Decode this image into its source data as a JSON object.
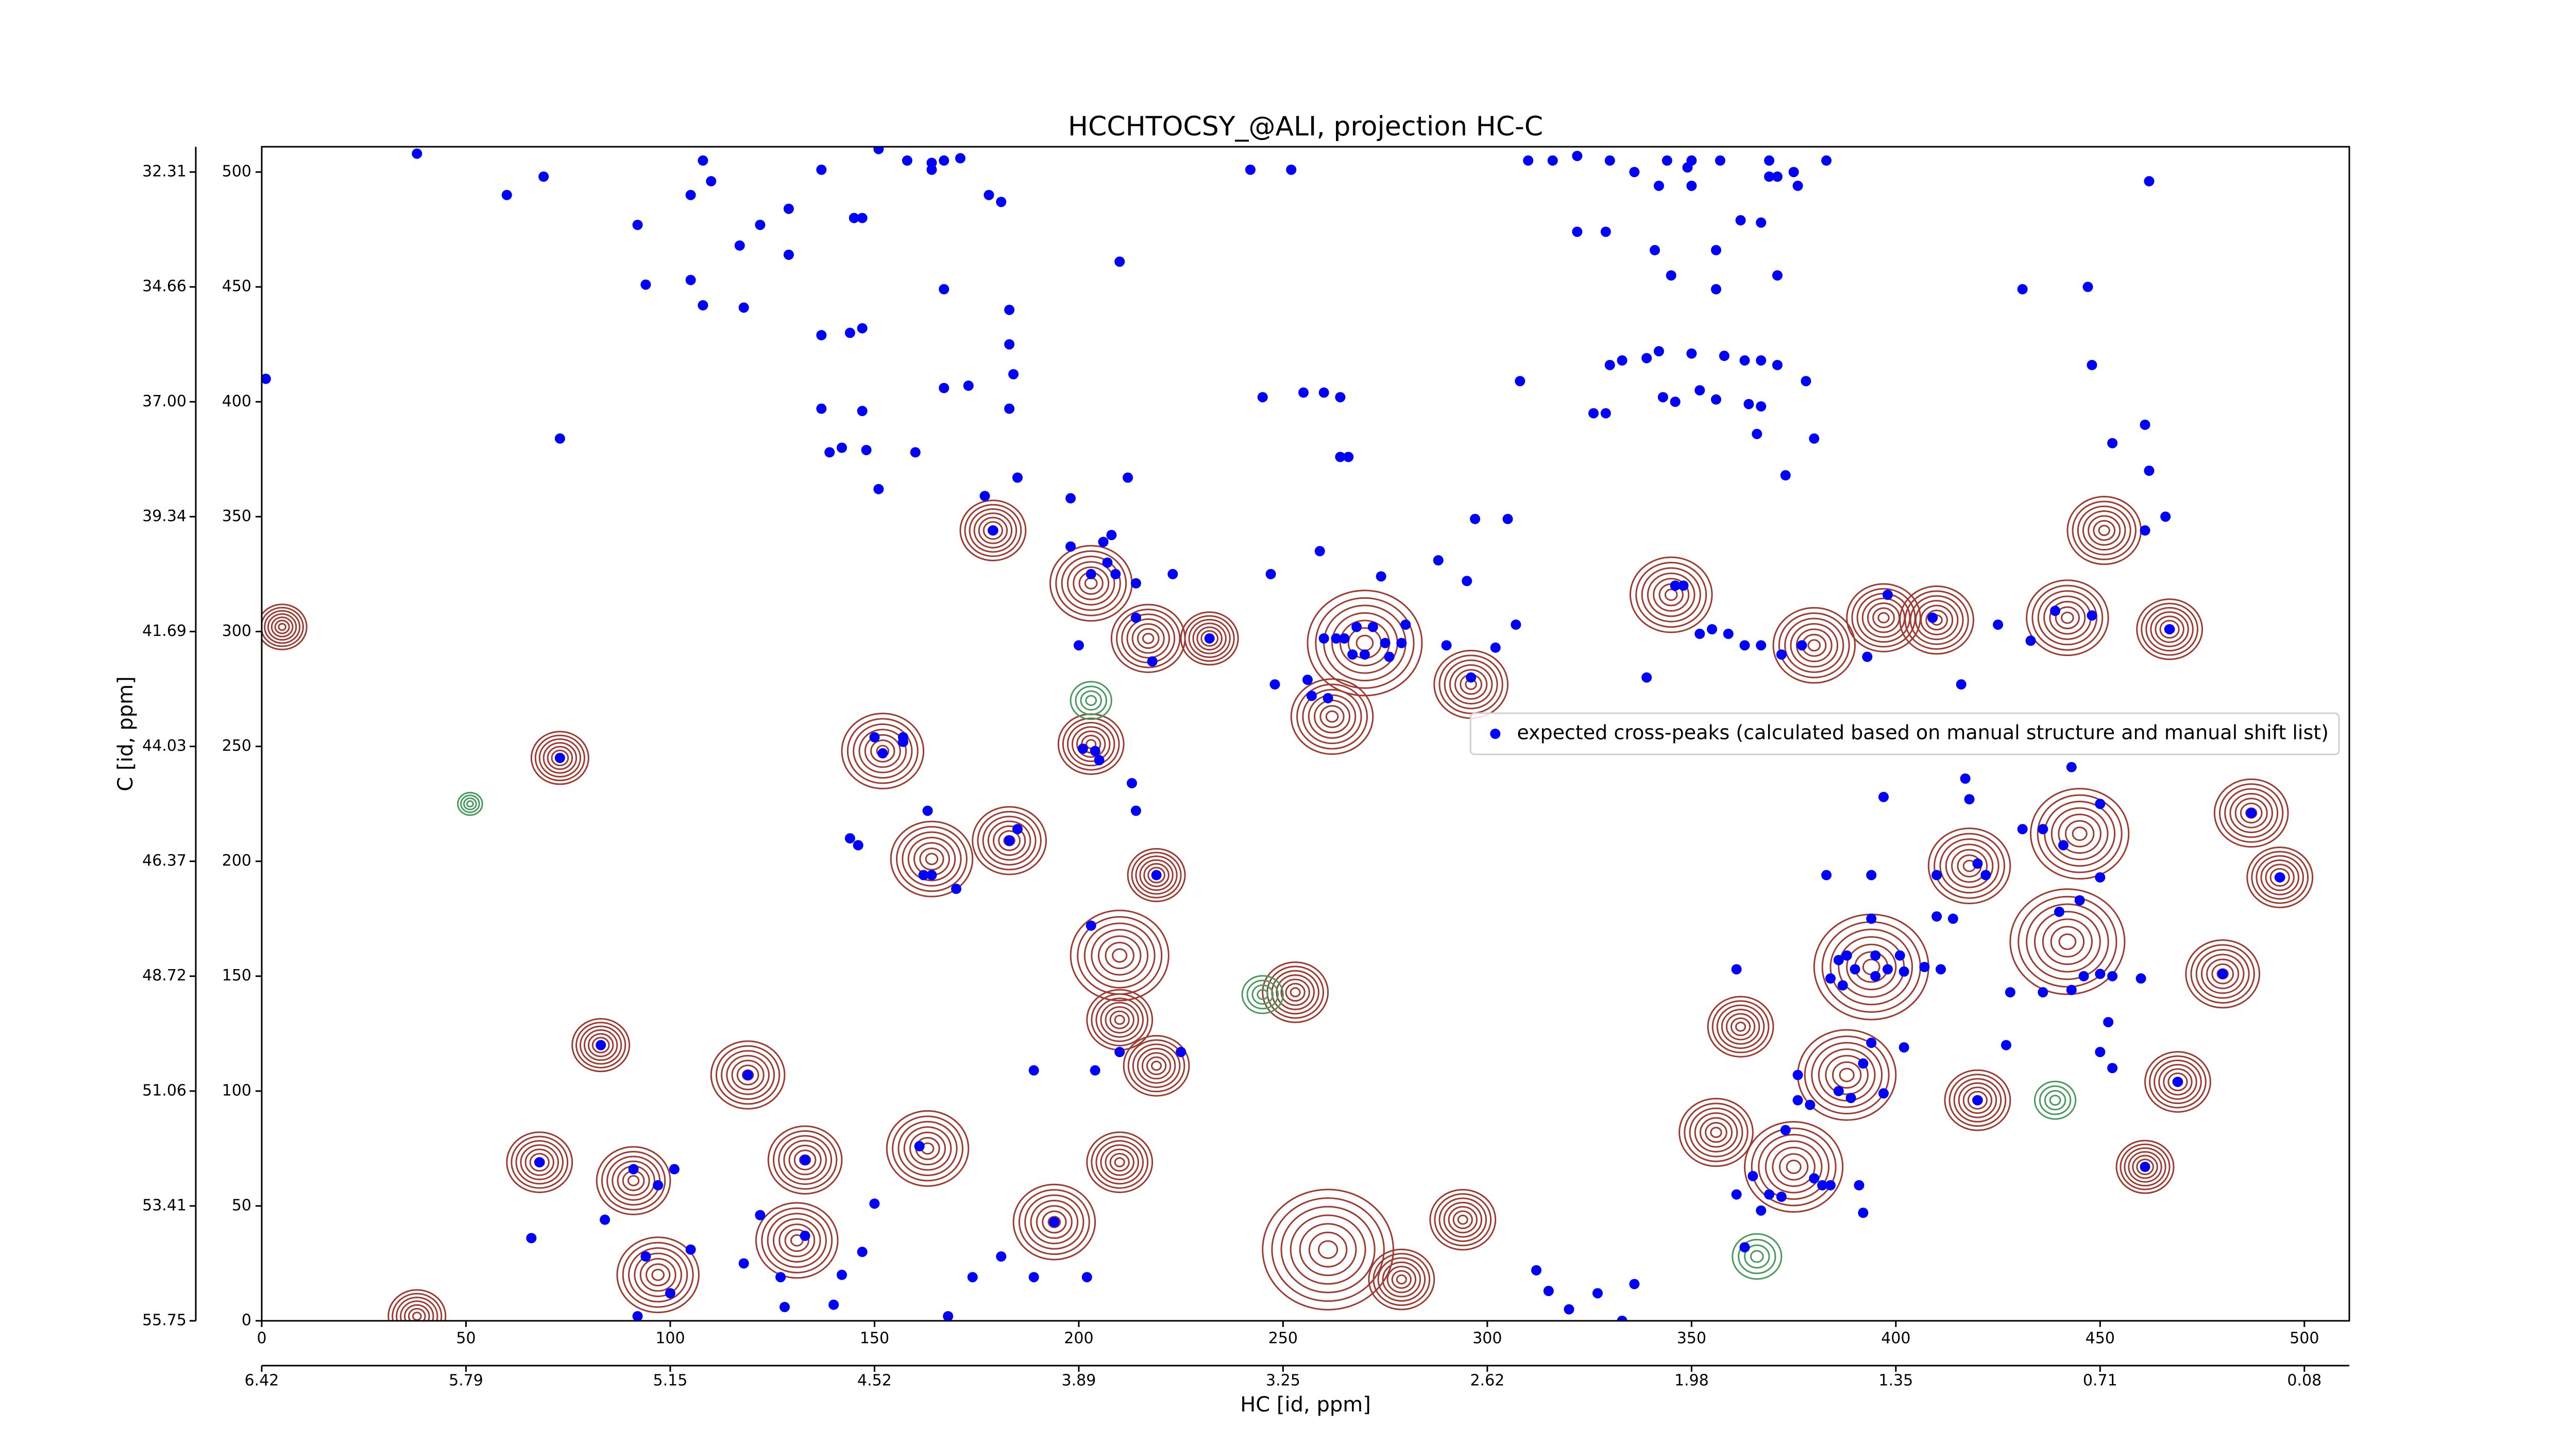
{
  "chart_data": {
    "type": "scatter",
    "title": "HCCHTOCSY_@ALI, projection HC-C",
    "xlabel": "HC [id, ppm]",
    "ylabel": "C [id, ppm]",
    "xlim": [
      0,
      511
    ],
    "ylim": [
      0,
      511
    ],
    "xticks": [
      0,
      50,
      100,
      150,
      200,
      250,
      300,
      350,
      400,
      450,
      500
    ],
    "yticks": [
      0,
      50,
      100,
      150,
      200,
      250,
      300,
      350,
      400,
      450,
      500
    ],
    "x2ticks": [
      {
        "value": 0,
        "label": "6.42"
      },
      {
        "value": 50,
        "label": "5.79"
      },
      {
        "value": 100,
        "label": "5.15"
      },
      {
        "value": 150,
        "label": "4.52"
      },
      {
        "value": 200,
        "label": "3.89"
      },
      {
        "value": 250,
        "label": "3.25"
      },
      {
        "value": 300,
        "label": "2.62"
      },
      {
        "value": 350,
        "label": "1.98"
      },
      {
        "value": 400,
        "label": "1.35"
      },
      {
        "value": 450,
        "label": "0.71"
      },
      {
        "value": 500,
        "label": "0.08"
      }
    ],
    "y2ticks": [
      {
        "value": 0,
        "label": "55.75"
      },
      {
        "value": 50,
        "label": "53.41"
      },
      {
        "value": 100,
        "label": "51.06"
      },
      {
        "value": 150,
        "label": "48.72"
      },
      {
        "value": 200,
        "label": "46.37"
      },
      {
        "value": 250,
        "label": "44.03"
      },
      {
        "value": 300,
        "label": "41.69"
      },
      {
        "value": 350,
        "label": "39.34"
      },
      {
        "value": 400,
        "label": "37.00"
      },
      {
        "value": 450,
        "label": "34.66"
      },
      {
        "value": 500,
        "label": "32.31"
      }
    ],
    "legend": "center right",
    "series": [
      {
        "name": "expected cross-peaks (calculated based on manual structure and manual shift list)",
        "color": "#0000ff",
        "x": [
          1,
          38,
          60,
          69,
          73,
          92,
          94,
          105,
          105,
          108,
          110,
          108,
          117,
          118,
          122,
          129,
          129,
          137,
          137,
          137,
          139,
          142,
          144,
          145,
          147,
          147,
          147,
          148,
          151,
          151,
          158,
          160,
          164,
          164,
          167,
          171,
          167,
          167,
          173,
          178,
          181,
          183,
          183,
          184,
          183,
          177,
          185,
          198,
          210,
          212,
          242,
          245,
          252,
          255,
          260,
          264,
          264,
          266,
          308,
          310,
          316,
          322,
          322,
          326,
          329,
          329,
          330,
          333,
          330,
          336,
          339,
          341,
          342,
          343,
          342,
          344,
          345,
          346,
          350,
          350,
          350,
          349,
          352,
          356,
          356,
          357,
          356,
          358,
          363,
          364,
          362,
          366,
          367,
          367,
          367,
          369,
          369,
          371,
          371,
          371,
          373,
          375,
          376,
          378,
          380,
          383,
          431,
          447,
          448,
          453,
          461,
          462,
          462,
          73,
          83,
          119,
          68,
          66,
          84,
          91,
          101,
          97,
          94,
          105,
          92,
          100,
          118,
          122,
          127,
          133,
          133,
          128,
          140,
          142,
          147,
          150,
          161,
          144,
          146,
          150,
          152,
          157,
          157,
          163,
          162,
          164,
          170,
          174,
          181,
          183,
          185,
          168,
          179,
          189,
          189,
          194,
          198,
          200,
          203,
          204,
          201,
          204,
          205,
          203,
          206,
          207,
          209,
          208,
          210,
          214,
          214,
          213,
          214,
          218,
          219,
          223,
          225,
          232,
          202,
          248,
          247,
          259,
          256,
          257,
          261,
          260,
          263,
          265,
          267,
          268,
          270,
          272,
          274,
          275,
          276,
          279,
          280,
          288,
          290,
          295,
          296,
          297,
          302,
          305,
          307,
          312,
          315,
          320,
          327,
          333,
          336,
          339,
          346,
          348,
          352,
          355,
          359,
          363,
          361,
          367,
          377,
          372,
          361,
          363,
          365,
          369,
          372,
          373,
          376,
          376,
          379,
          380,
          382,
          384,
          386,
          389,
          392,
          394,
          391,
          392,
          367,
          383,
          394,
          384,
          386,
          388,
          387,
          390,
          395,
          395,
          398,
          401,
          402,
          407,
          411,
          397,
          402,
          397,
          394,
          398,
          393,
          410,
          414,
          418,
          410,
          416,
          417,
          420,
          422,
          420,
          409,
          425,
          427,
          428,
          431,
          433,
          436,
          436,
          440,
          439,
          441,
          443,
          443,
          445,
          446,
          448,
          450,
          450,
          450,
          450,
          452,
          453,
          453,
          460,
          461,
          467,
          461,
          466,
          469,
          480,
          487,
          494
        ],
        "y": [
          410,
          508,
          490,
          498,
          384,
          477,
          451,
          490,
          453,
          505,
          496,
          442,
          468,
          441,
          477,
          484,
          464,
          429,
          501,
          397,
          378,
          380,
          430,
          480,
          480,
          432,
          396,
          379,
          362,
          510,
          505,
          378,
          504,
          501,
          505,
          506,
          449,
          406,
          407,
          490,
          487,
          440,
          425,
          412,
          397,
          359,
          367,
          358,
          461,
          367,
          501,
          402,
          501,
          404,
          404,
          402,
          376,
          376,
          409,
          505,
          505,
          507,
          474,
          395,
          395,
          474,
          416,
          418,
          505,
          500,
          419,
          466,
          422,
          402,
          494,
          505,
          455,
          400,
          421,
          505,
          494,
          502,
          405,
          466,
          449,
          505,
          401,
          420,
          418,
          399,
          479,
          386,
          478,
          398,
          418,
          505,
          498,
          455,
          416,
          498,
          368,
          500,
          494,
          409,
          384,
          505,
          449,
          450,
          416,
          382,
          390,
          370,
          496,
          245,
          120,
          107,
          69,
          36,
          44,
          66,
          66,
          59,
          28,
          31,
          2,
          12,
          25,
          46,
          19,
          37,
          70,
          6,
          7,
          20,
          30,
          51,
          76,
          210,
          207,
          254,
          247,
          254,
          252,
          222,
          194,
          194,
          188,
          19,
          28,
          209,
          214,
          2,
          344,
          109,
          19,
          43,
          337,
          294,
          325,
          109,
          249,
          248,
          244,
          172,
          339,
          330,
          325,
          342,
          117,
          321,
          306,
          234,
          222,
          287,
          194,
          325,
          117,
          297,
          19,
          277,
          325,
          335,
          279,
          272,
          271,
          297,
          297,
          297,
          290,
          302,
          290,
          302,
          324,
          295,
          289,
          295,
          303,
          331,
          294,
          322,
          280,
          349,
          293,
          349,
          303,
          22,
          13,
          5,
          12,
          0,
          16,
          280,
          320,
          320,
          299,
          301,
          299,
          294,
          153,
          294,
          294,
          290,
          55,
          32,
          63,
          55,
          54,
          83,
          96,
          107,
          94,
          62,
          59,
          59,
          100,
          97,
          112,
          121,
          59,
          47,
          48,
          194,
          175,
          149,
          157,
          159,
          146,
          153,
          159,
          150,
          153,
          159,
          152,
          154,
          153,
          99,
          119,
          228,
          194,
          316,
          289,
          176,
          175,
          227,
          194,
          277,
          236,
          199,
          194,
          96,
          306,
          303,
          120,
          143,
          214,
          296,
          143,
          214,
          178,
          309,
          207,
          241,
          144,
          183,
          150,
          307,
          225,
          193,
          151,
          117,
          130,
          150,
          110,
          149,
          67,
          301,
          344,
          350,
          104,
          151,
          221,
          193
        ]
      }
    ],
    "contours": {
      "positive": {
        "color": "#a0392f",
        "x": [
          83,
          119,
          68,
          91,
          97,
          133,
          131,
          163,
          194,
          210,
          210,
          219,
          210,
          203,
          253,
          261,
          279,
          294,
          345,
          356,
          375,
          394,
          388,
          420,
          442,
          445,
          418,
          469,
          480,
          487,
          494,
          410,
          442,
          467,
          451,
          380,
          397,
          270,
          262,
          296,
          203,
          219,
          183,
          164,
          152,
          179,
          217,
          232,
          362,
          461,
          73,
          5,
          38
        ],
        "y": [
          120,
          107,
          69,
          61,
          20,
          70,
          35,
          75,
          43,
          69,
          131,
          111,
          159,
          251,
          143,
          31,
          18,
          44,
          316,
          82,
          67,
          154,
          107,
          96,
          165,
          212,
          198,
          104,
          151,
          221,
          193,
          305,
          306,
          301,
          344,
          294,
          306,
          295,
          263,
          277,
          321,
          194,
          209,
          201,
          248,
          344,
          297,
          297,
          128,
          67,
          245,
          302,
          2
        ],
        "r": [
          7,
          9,
          8,
          9,
          10,
          9,
          10,
          10,
          10,
          8,
          8,
          8,
          12,
          8,
          8,
          16,
          8,
          8,
          10,
          9,
          12,
          14,
          12,
          8,
          14,
          12,
          10,
          8,
          9,
          9,
          8,
          9,
          10,
          8,
          9,
          10,
          9,
          14,
          10,
          9,
          10,
          7,
          9,
          10,
          10,
          8,
          9,
          7,
          8,
          7,
          7,
          6,
          7
        ]
      },
      "negative": {
        "color": "#4a9a5e",
        "x": [
          203,
          245,
          366,
          439,
          51
        ],
        "y": [
          270,
          142,
          28,
          96,
          225
        ],
        "r": [
          5,
          5,
          6,
          5,
          3
        ]
      }
    }
  }
}
